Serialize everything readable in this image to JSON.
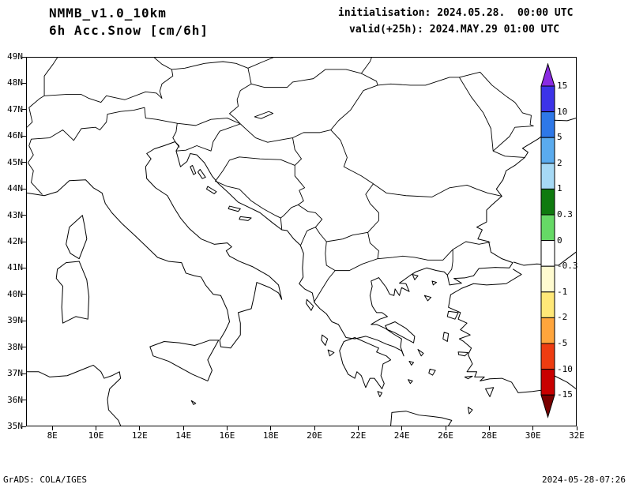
{
  "header": {
    "model": "NMMB_v1.0_10km",
    "field": "6h Acc.Snow [cm/6h]",
    "init_line": "initialisation: 2024.05.28.  00:00 UTC",
    "valid_line": "valid(+25h): 2024.MAY.29 01:00 UTC"
  },
  "axes": {
    "lat_labels": [
      "49N",
      "48N",
      "47N",
      "46N",
      "45N",
      "44N",
      "43N",
      "42N",
      "41N",
      "40N",
      "39N",
      "38N",
      "37N",
      "36N",
      "35N"
    ],
    "lon_labels": [
      "8E",
      "10E",
      "12E",
      "14E",
      "16E",
      "18E",
      "20E",
      "22E",
      "24E",
      "26E",
      "28E",
      "30E",
      "32E"
    ]
  },
  "colorbar": {
    "tick_labels": [
      "15",
      "10",
      "5",
      "2",
      "1",
      "0.3",
      "0",
      "-0.3",
      "-1",
      "-2",
      "-5",
      "-10",
      "-15"
    ],
    "colors": [
      "#8a2be2",
      "#3c33e8",
      "#2e78e8",
      "#5aabee",
      "#a6d9f5",
      "#0f7a0f",
      "#66d966",
      "#ffffff",
      "#fffbd0",
      "#ffe878",
      "#ffa53c",
      "#ee3c11",
      "#c80000",
      "#7a0000"
    ]
  },
  "footer": {
    "left": "GrADS: COLA/IGES",
    "right": "2024-05-28-07:26"
  }
}
